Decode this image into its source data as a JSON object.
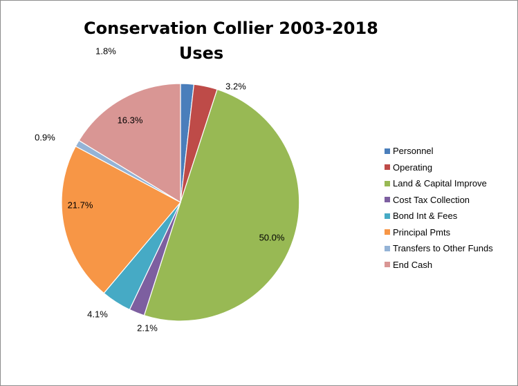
{
  "chart_data": {
    "type": "pie",
    "title_lines": [
      "Conservation Collier 2003-2018",
      "Uses"
    ],
    "categories": [
      "Personnel",
      "Operating",
      "Land & Capital Improve",
      "Cost Tax Collection",
      "Bond Int & Fees",
      "Principal Pmts",
      "Transfers to Other Funds",
      "End Cash"
    ],
    "values": [
      1.8,
      3.2,
      50.0,
      2.1,
      4.1,
      21.7,
      0.9,
      16.3
    ],
    "labels": [
      "1.8%",
      "3.2%",
      "50.0%",
      "2.1%",
      "4.1%",
      "21.7%",
      "0.9%",
      "16.3%"
    ],
    "colors": [
      "#4a7ebb",
      "#be4b48",
      "#98b954",
      "#7d5fa0",
      "#46aac5",
      "#f79646",
      "#94b3d6",
      "#d99694"
    ],
    "legend_position": "right"
  }
}
